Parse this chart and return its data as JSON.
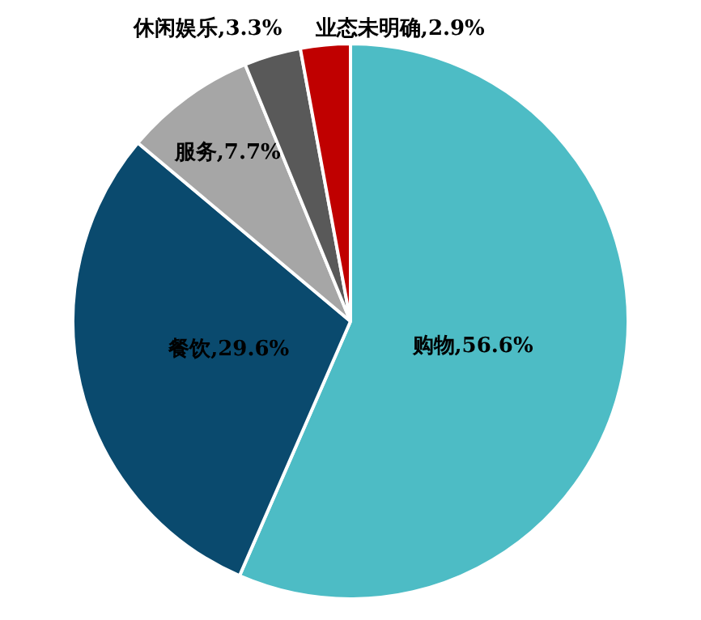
{
  "chart_data": {
    "type": "pie",
    "categories": [
      "购物",
      "餐饮",
      "服务",
      "休闲娱乐",
      "业态未明确"
    ],
    "values": [
      56.6,
      29.6,
      7.7,
      3.3,
      2.9
    ],
    "colors": [
      "#4dbcc5",
      "#0a4a6e",
      "#a6a6a6",
      "#595959",
      "#c00000"
    ],
    "value_labels": [
      "56.6%",
      "29.6%",
      "7.7%",
      "3.3%",
      "2.9%"
    ],
    "legend": false
  }
}
